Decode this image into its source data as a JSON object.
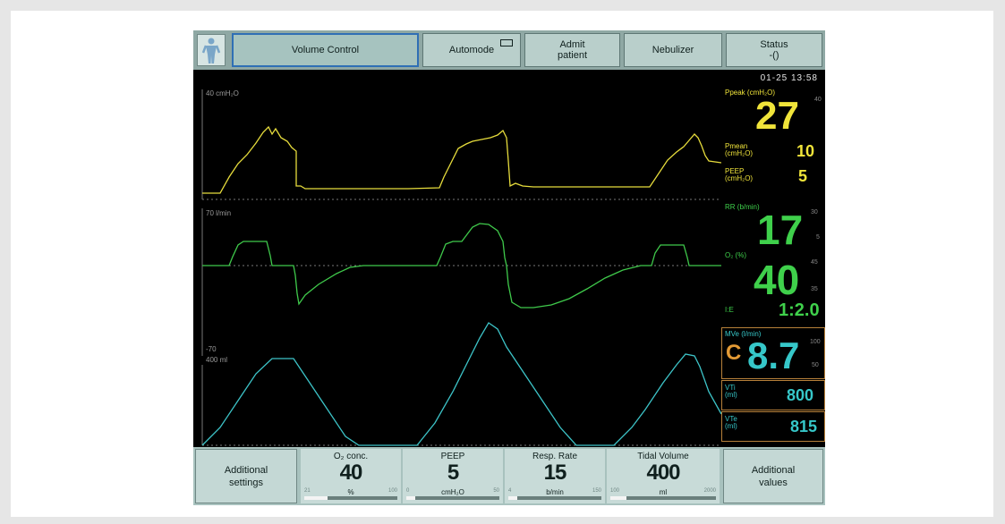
{
  "topbar": {
    "tabs": [
      {
        "label": "Volume Control",
        "active": true
      },
      {
        "label": "Automode",
        "active": false
      },
      {
        "label": "Admit\npatient",
        "active": false
      },
      {
        "label": "Nebulizer",
        "active": false
      },
      {
        "label": "Status\n-()",
        "active": false
      }
    ]
  },
  "clock": {
    "text": "01-25   13:58"
  },
  "waveforms": {
    "pressure_label": "40   cmH₂O",
    "flow_label": "70   l/min",
    "flow_neg_label": "-70",
    "volume_label": "400   ml",
    "pressure_color": "#e6dc3c",
    "flow_color": "#3fc94b",
    "volume_color": "#3dc4c8"
  },
  "values": {
    "ppeak": {
      "label": "Ppeak  (cmH₂O)",
      "value": "27",
      "limit": "40"
    },
    "pmean": {
      "label": "Pmean\n(cmH₂O)",
      "value": "10"
    },
    "peep": {
      "label": "PEEP\n(cmH₂O)",
      "value": "5"
    },
    "rr": {
      "label": "RR  (b/min)",
      "value": "17",
      "limit_high": "30",
      "limit_low": "5"
    },
    "o2": {
      "label": "O₂  (%)",
      "value": "40",
      "limit_high": "45",
      "limit_low": "35"
    },
    "ie": {
      "label": "I:E",
      "value": "1:2.0"
    },
    "mve": {
      "label": "MVe  (l/min)",
      "prefix": "C",
      "value": "8.7",
      "limit_high": "100",
      "limit_low": "50"
    },
    "vti": {
      "label": "VTi\n(ml)",
      "value": "800"
    },
    "vte": {
      "label": "VTe\n(ml)",
      "value": "815"
    }
  },
  "bottombar": {
    "left_button": "Additional\nsettings",
    "right_button": "Additional\nvalues",
    "settings": [
      {
        "name": "O₂ conc.",
        "value": "40",
        "unit": "%",
        "min": "21",
        "max": "100",
        "level": 0.25
      },
      {
        "name": "PEEP",
        "value": "5",
        "unit": "cmH₂O",
        "min": "0",
        "max": "50",
        "level": 0.1
      },
      {
        "name": "Resp. Rate",
        "value": "15",
        "unit": "b/min",
        "min": "4",
        "max": "150",
        "level": 0.1
      },
      {
        "name": "Tidal Volume",
        "value": "400",
        "unit": "ml",
        "min": "100",
        "max": "2000",
        "level": 0.15
      }
    ]
  }
}
